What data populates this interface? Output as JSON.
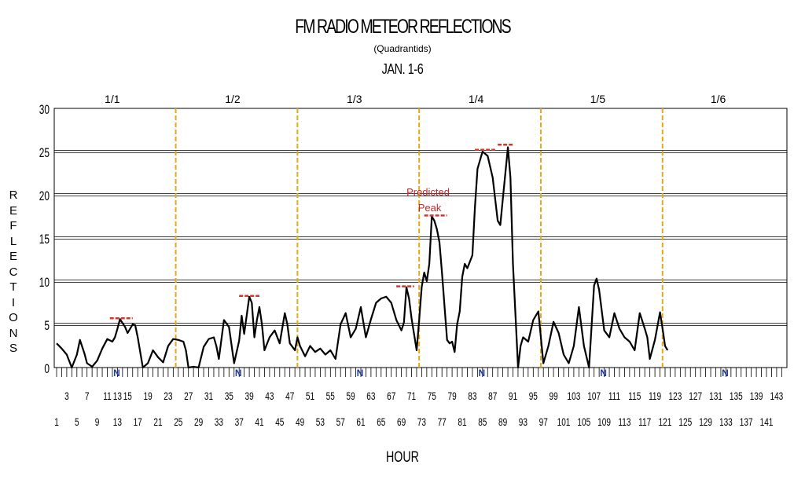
{
  "chart_data": {
    "type": "line",
    "title": "FM RADIO METEOR REFLECTIONS",
    "subtitle": "(Quadrantids)",
    "subtitle2": "JAN. 1-6",
    "xlabel": "HOUR",
    "ylabel": "REFLECTIONS",
    "ylim": [
      0,
      30
    ],
    "yticks": [
      0,
      5,
      10,
      15,
      20,
      25,
      30
    ],
    "xlim": [
      1,
      144
    ],
    "xticks_odd_row1": [
      3,
      7,
      11,
      13,
      15,
      19,
      23,
      27,
      31,
      35,
      39,
      43,
      47,
      51,
      55,
      59,
      63,
      67,
      71,
      75,
      79,
      83,
      87,
      91,
      95,
      99,
      103,
      107,
      111,
      115,
      119,
      123,
      127,
      131,
      135,
      139,
      143
    ],
    "xticks_row1_labels": [
      "3",
      "7",
      "11",
      "13",
      "15",
      "19",
      "23",
      "27",
      "31",
      "35",
      "39",
      "43",
      "47",
      "51",
      "55",
      "59",
      "63",
      "67",
      "71",
      "75",
      "79",
      "83",
      "87",
      "91",
      "95",
      "99",
      "103",
      "107",
      "111",
      "115",
      "119",
      "123",
      "127",
      "131",
      "135",
      "139",
      "143"
    ],
    "xticks_row2_labels": [
      "1",
      "5",
      "9",
      "13",
      "17",
      "21",
      "25",
      "29",
      "33",
      "37",
      "41",
      "45",
      "49",
      "53",
      "57",
      "61",
      "65",
      "69",
      "73",
      "77",
      "81",
      "85",
      "89",
      "93",
      "97",
      "101",
      "105",
      "109",
      "113",
      "117",
      "121",
      "125",
      "129",
      "133",
      "137",
      "141"
    ],
    "day_labels": [
      "1/1",
      "1/2",
      "1/3",
      "1/4",
      "1/5",
      "1/6"
    ],
    "day_dividers": [
      24.5,
      48.5,
      72.5,
      96.5,
      120.5
    ],
    "noon_marker": "N",
    "noon_hours": [
      13,
      37,
      61,
      85,
      109,
      133
    ],
    "annotation": {
      "text_line1": "Predicted",
      "text_line2": "Peak",
      "x": 75.5,
      "y": 20
    },
    "peak_markers": [
      {
        "x0": 11.5,
        "x1": 16,
        "y": 5.7
      },
      {
        "x0": 37,
        "x1": 41,
        "y": 8.3
      },
      {
        "x0": 68,
        "x1": 71.5,
        "y": 9.4
      },
      {
        "x0": 73.5,
        "x1": 78,
        "y": 17.6
      },
      {
        "x0": 83.5,
        "x1": 87.5,
        "y": 25.2
      },
      {
        "x0": 88,
        "x1": 91,
        "y": 25.8
      }
    ],
    "series": [
      {
        "color": "#000000",
        "points": [
          [
            1,
            2.8
          ],
          [
            2,
            2.2
          ],
          [
            3,
            1.5
          ],
          [
            4,
            0
          ],
          [
            5,
            1.5
          ],
          [
            5.6,
            3.2
          ],
          [
            6.5,
            1.6
          ],
          [
            7,
            0.5
          ],
          [
            8,
            0.1
          ],
          [
            9,
            0.8
          ],
          [
            10,
            2.2
          ],
          [
            11,
            3.3
          ],
          [
            12,
            3.0
          ],
          [
            12.5,
            3.5
          ],
          [
            13,
            4.5
          ],
          [
            13.5,
            5.6
          ],
          [
            14.5,
            4.7
          ],
          [
            15,
            4.0
          ],
          [
            16,
            5.0
          ],
          [
            16.5,
            4.9
          ],
          [
            17,
            3.5
          ],
          [
            18,
            0
          ],
          [
            19,
            0.5
          ],
          [
            20,
            2.0
          ],
          [
            21,
            1.2
          ],
          [
            22,
            0.6
          ],
          [
            23,
            2.5
          ],
          [
            24,
            3.3
          ],
          [
            25,
            3.2
          ],
          [
            26,
            3.0
          ],
          [
            26.5,
            2.0
          ],
          [
            27,
            0
          ],
          [
            28,
            0.1
          ],
          [
            29,
            0
          ],
          [
            30,
            2.4
          ],
          [
            31,
            3.3
          ],
          [
            32,
            3.5
          ],
          [
            32.5,
            2.5
          ],
          [
            33,
            1.0
          ],
          [
            34,
            5.5
          ],
          [
            35,
            4.7
          ],
          [
            36,
            0.5
          ],
          [
            37,
            3.1
          ],
          [
            37.5,
            6.0
          ],
          [
            38,
            3.9
          ],
          [
            39,
            8.2
          ],
          [
            39.5,
            7.5
          ],
          [
            40,
            3.5
          ],
          [
            40.5,
            5.5
          ],
          [
            41,
            7.0
          ],
          [
            41.5,
            5.0
          ],
          [
            42,
            2.0
          ],
          [
            43,
            3.5
          ],
          [
            44,
            4.3
          ],
          [
            45,
            2.8
          ],
          [
            46,
            6.3
          ],
          [
            46.5,
            5.0
          ],
          [
            47,
            2.8
          ],
          [
            48,
            2.0
          ],
          [
            48.5,
            3.5
          ],
          [
            49,
            2.5
          ],
          [
            50,
            1.3
          ],
          [
            51,
            2.5
          ],
          [
            52,
            1.8
          ],
          [
            53,
            2.2
          ],
          [
            54,
            1.5
          ],
          [
            55,
            2.0
          ],
          [
            56,
            1.0
          ],
          [
            57,
            5.0
          ],
          [
            58,
            6.3
          ],
          [
            59,
            3.5
          ],
          [
            60,
            4.5
          ],
          [
            61,
            7.0
          ],
          [
            62,
            3.5
          ],
          [
            63,
            5.6
          ],
          [
            64,
            7.5
          ],
          [
            65,
            8.0
          ],
          [
            66,
            8.2
          ],
          [
            67,
            7.5
          ],
          [
            68,
            5.5
          ],
          [
            69,
            4.3
          ],
          [
            69.5,
            5.2
          ],
          [
            70,
            9.3
          ],
          [
            70.5,
            8.0
          ],
          [
            71,
            5.7
          ],
          [
            72,
            2.0
          ],
          [
            72.5,
            5.5
          ],
          [
            73,
            9.3
          ],
          [
            73.5,
            11.0
          ],
          [
            74,
            10.0
          ],
          [
            74.5,
            12.0
          ],
          [
            75,
            17.5
          ],
          [
            75.5,
            17.0
          ],
          [
            76,
            16.0
          ],
          [
            76.5,
            14.5
          ],
          [
            77,
            11.0
          ],
          [
            78,
            3.2
          ],
          [
            78.5,
            2.8
          ],
          [
            79,
            3.0
          ],
          [
            79.5,
            1.8
          ],
          [
            80,
            5.0
          ],
          [
            80.5,
            6.5
          ],
          [
            81,
            10.5
          ],
          [
            81.5,
            12.0
          ],
          [
            82,
            11.5
          ],
          [
            83,
            13.0
          ],
          [
            83.5,
            18.5
          ],
          [
            84,
            23.0
          ],
          [
            85,
            25.0
          ],
          [
            86,
            24.5
          ],
          [
            87,
            22.0
          ],
          [
            88,
            17.0
          ],
          [
            88.5,
            16.5
          ],
          [
            89,
            19.5
          ],
          [
            90,
            25.5
          ],
          [
            90.5,
            22.0
          ],
          [
            91,
            12.0
          ],
          [
            92,
            0
          ],
          [
            92.5,
            2.5
          ],
          [
            93,
            3.5
          ],
          [
            94,
            3.0
          ],
          [
            95,
            5.5
          ],
          [
            96,
            6.5
          ],
          [
            97,
            0.5
          ],
          [
            98,
            2.5
          ],
          [
            99,
            5.3
          ],
          [
            100,
            4.0
          ],
          [
            101,
            1.5
          ],
          [
            102,
            0.5
          ],
          [
            103,
            2.5
          ],
          [
            104,
            7.0
          ],
          [
            105,
            2.5
          ],
          [
            106,
            0
          ],
          [
            107,
            9.5
          ],
          [
            107.5,
            10.3
          ],
          [
            108,
            9.0
          ],
          [
            109,
            4.3
          ],
          [
            110,
            3.5
          ],
          [
            111,
            6.3
          ],
          [
            112,
            4.5
          ],
          [
            113,
            3.5
          ],
          [
            114,
            3.0
          ],
          [
            115,
            2.0
          ],
          [
            116,
            6.3
          ],
          [
            117,
            4.5
          ],
          [
            117.5,
            3.5
          ],
          [
            118,
            1.0
          ],
          [
            119,
            3.2
          ],
          [
            120,
            6.4
          ],
          [
            120.5,
            4.5
          ],
          [
            121,
            2.5
          ],
          [
            121.5,
            2.0
          ]
        ]
      }
    ],
    "colors": {
      "series": "#000000",
      "divider": "#e6a817",
      "peak_marker": "#d9332b",
      "annotation": "#c0282d",
      "noon": "#1f3d9e",
      "grid": "#000000"
    }
  }
}
